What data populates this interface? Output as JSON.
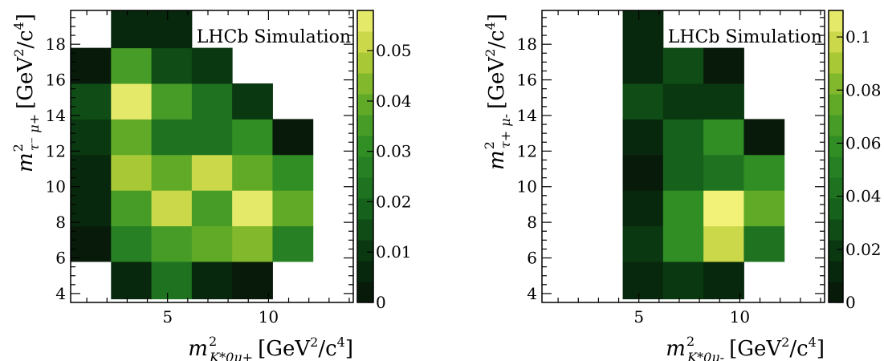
{
  "chart_data": [
    {
      "type": "heatmap",
      "annotation": "LHCb Simulation",
      "xlabel": "m²_{K*0 μ+} [GeV²/c⁴]",
      "ylabel": "m²_{τ⁻ μ+} [GeV²/c⁴]",
      "xlabel_parts": {
        "m": "m",
        "sup": "2",
        "sub": "K*0μ+",
        "units": "[GeV",
        "units_sup": "2",
        "units_tail": "/c",
        "units_sup2": "4",
        "units_close": "]"
      },
      "ylabel_parts": {
        "m": "m",
        "sup": "2",
        "sub": "τ⁻ μ+",
        "units": "[GeV",
        "units_sup": "2",
        "units_tail": "/c",
        "units_sup2": "4",
        "units_close": "]"
      },
      "xlim": [
        0.2,
        14.2
      ],
      "ylim": [
        3.5,
        19.9
      ],
      "x_ticks": [
        5,
        10
      ],
      "y_ticks": [
        4,
        6,
        8,
        10,
        12,
        14,
        16,
        18
      ],
      "x_edges": [
        0.2,
        2.2,
        4.2,
        6.2,
        8.2,
        10.2,
        12.2,
        14.2
      ],
      "y_edges": [
        3.7,
        5.8,
        7.8,
        9.8,
        11.8,
        13.8,
        15.8,
        17.8,
        19.9
      ],
      "values": [
        [
          null,
          0.006,
          0.022,
          0.007,
          0.001,
          null,
          null
        ],
        [
          0.004,
          0.026,
          0.036,
          0.038,
          0.044,
          0.028,
          null
        ],
        [
          0.008,
          0.036,
          0.051,
          0.035,
          0.057,
          0.039,
          null
        ],
        [
          0.007,
          0.046,
          0.038,
          0.052,
          0.039,
          0.029,
          null
        ],
        [
          0.012,
          0.039,
          0.022,
          0.022,
          0.032,
          0.003,
          null
        ],
        [
          0.013,
          0.056,
          0.036,
          0.021,
          0.01,
          null,
          null
        ],
        [
          0.002,
          0.035,
          0.013,
          0.011,
          null,
          null,
          null
        ],
        [
          null,
          0.005,
          0.007,
          null,
          null,
          null,
          null
        ]
      ],
      "colorbar": {
        "min": 0,
        "max": 0.058,
        "ticks": [
          0,
          0.01,
          0.02,
          0.03,
          0.04,
          0.05
        ],
        "tick_labels": [
          "0",
          "0.01",
          "0.02",
          "0.03",
          "0.04",
          "0.05"
        ]
      }
    },
    {
      "type": "heatmap",
      "annotation": "LHCb Simulation",
      "xlabel": "m²_{K*0 μ-} [GeV²/c⁴]",
      "ylabel": "m²_{τ+ μ-} [GeV²/c⁴]",
      "xlabel_parts": {
        "m": "m",
        "sup": "2",
        "sub": "K*0μ-",
        "units": "[GeV",
        "units_sup": "2",
        "units_tail": "/c",
        "units_sup2": "4",
        "units_close": "]"
      },
      "ylabel_parts": {
        "m": "m",
        "sup": "2",
        "sub": "τ+ μ-",
        "units": "[GeV",
        "units_sup": "2",
        "units_tail": "/c",
        "units_sup2": "4",
        "units_close": "]"
      },
      "xlim": [
        0.2,
        14.2
      ],
      "ylim": [
        3.5,
        19.9
      ],
      "x_ticks": [
        5,
        10
      ],
      "y_ticks": [
        4,
        6,
        8,
        10,
        12,
        14,
        16,
        18
      ],
      "x_edges": [
        0.2,
        2.2,
        4.2,
        6.2,
        8.2,
        10.2,
        12.2,
        14.2
      ],
      "y_edges": [
        3.7,
        5.8,
        7.8,
        9.8,
        11.8,
        13.8,
        15.8,
        17.8,
        19.9
      ],
      "values": [
        [
          null,
          null,
          0.012,
          0.02,
          0.015,
          null,
          null
        ],
        [
          null,
          null,
          0.02,
          0.062,
          0.095,
          0.04,
          null
        ],
        [
          null,
          null,
          0.015,
          0.055,
          0.11,
          0.072,
          null
        ],
        [
          null,
          null,
          0.004,
          0.035,
          0.045,
          0.058,
          null
        ],
        [
          null,
          null,
          0.01,
          0.038,
          0.055,
          0.003,
          null
        ],
        [
          null,
          null,
          0.025,
          0.018,
          0.022,
          null,
          null
        ],
        [
          null,
          null,
          0.015,
          0.03,
          0.001,
          null,
          null
        ],
        [
          null,
          null,
          0.012,
          null,
          null,
          null,
          null
        ]
      ],
      "colorbar": {
        "min": 0,
        "max": 0.11,
        "ticks": [
          0,
          0.02,
          0.04,
          0.06,
          0.08,
          0.1
        ],
        "tick_labels": [
          "0",
          "0.02",
          "0.04",
          "0.06",
          "0.08",
          "0.1"
        ]
      }
    }
  ]
}
